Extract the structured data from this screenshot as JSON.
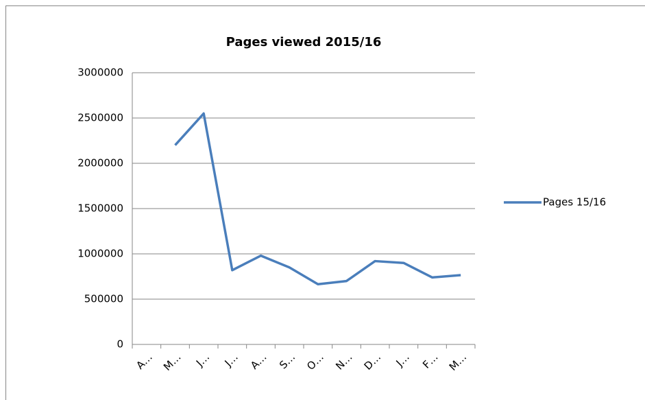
{
  "chart_data": {
    "type": "line",
    "title": "Pages viewed 2015/16",
    "categories": [
      "A…",
      "M…",
      "J…",
      "J…",
      "A…",
      "S…",
      "O…",
      "N…",
      "D…",
      "J…",
      "F…",
      "M…"
    ],
    "series": [
      {
        "name": "Pages 15/16",
        "color": "#4a7ebb",
        "values": [
          null,
          2200000,
          2550000,
          820000,
          980000,
          850000,
          665000,
          700000,
          920000,
          900000,
          740000,
          765000
        ]
      }
    ],
    "ylim": [
      0,
      3000000
    ],
    "yticks": [
      0,
      500000,
      1000000,
      1500000,
      2000000,
      2500000,
      3000000
    ],
    "grid": true,
    "legend": "right"
  }
}
